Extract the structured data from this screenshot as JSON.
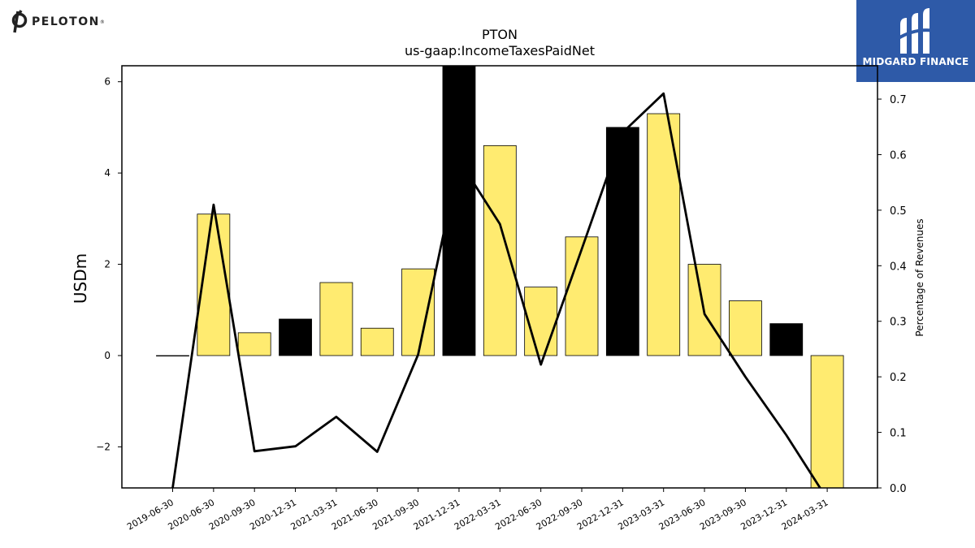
{
  "logos": {
    "left_brand": "PELOTON",
    "left_mark": "®",
    "right_brand": "MIDGARD FINANCE"
  },
  "chart_data": {
    "type": "bar",
    "title": "PTON",
    "subtitle": "us-gaap:IncomeTaxesPaidNet",
    "ylabel": "USDm",
    "y2label": "Percentage of Revenues",
    "categories": [
      "2019-06-30",
      "2020-06-30",
      "2020-09-30",
      "2020-12-31",
      "2021-03-31",
      "2021-06-30",
      "2021-09-30",
      "2021-12-31",
      "2022-03-31",
      "2022-06-30",
      "2022-09-30",
      "2022-12-31",
      "2023-03-31",
      "2023-06-30",
      "2023-09-30",
      "2023-12-31",
      "2024-03-31"
    ],
    "series": [
      {
        "values": [
          0,
          3.1,
          0.5,
          0.8,
          1.6,
          0.6,
          1.9,
          6.4,
          4.6,
          1.5,
          2.6,
          5.0,
          5.3,
          2.0,
          1.2,
          0.7,
          -3.0
        ],
        "colors": [
          "#000000",
          "#ffeb70",
          "#ffeb70",
          "#000000",
          "#ffeb70",
          "#ffeb70",
          "#ffeb70",
          "#000000",
          "#ffeb70",
          "#ffeb70",
          "#ffeb70",
          "#000000",
          "#ffeb70",
          "#ffeb70",
          "#ffeb70",
          "#000000",
          "#ffeb70"
        ]
      },
      {
        "type": "line",
        "axis": "right",
        "values": [
          0.0,
          0.51,
          0.066,
          0.075,
          0.128,
          0.065,
          0.24,
          0.59,
          0.475,
          0.222,
          0.43,
          0.64,
          0.71,
          0.313,
          0.2,
          0.095,
          -0.02
        ]
      }
    ],
    "ylim": [
      -2.9,
      6.35
    ],
    "yticks": [
      -2,
      0,
      2,
      4,
      6
    ],
    "ytick_labels": [
      "−2",
      "0",
      "2",
      "4",
      "6"
    ],
    "y2lim": [
      0.0,
      0.76
    ],
    "y2ticks": [
      0.0,
      0.1,
      0.2,
      0.3,
      0.4,
      0.5,
      0.6,
      0.7
    ],
    "y2tick_labels": [
      "0.0",
      "0.1",
      "0.2",
      "0.3",
      "0.4",
      "0.5",
      "0.6",
      "0.7"
    ],
    "colors": {
      "bar_highlight": "#ffeb70",
      "bar_dark": "#000000",
      "line": "#000000",
      "logo_panel": "#2e5aa8"
    }
  }
}
